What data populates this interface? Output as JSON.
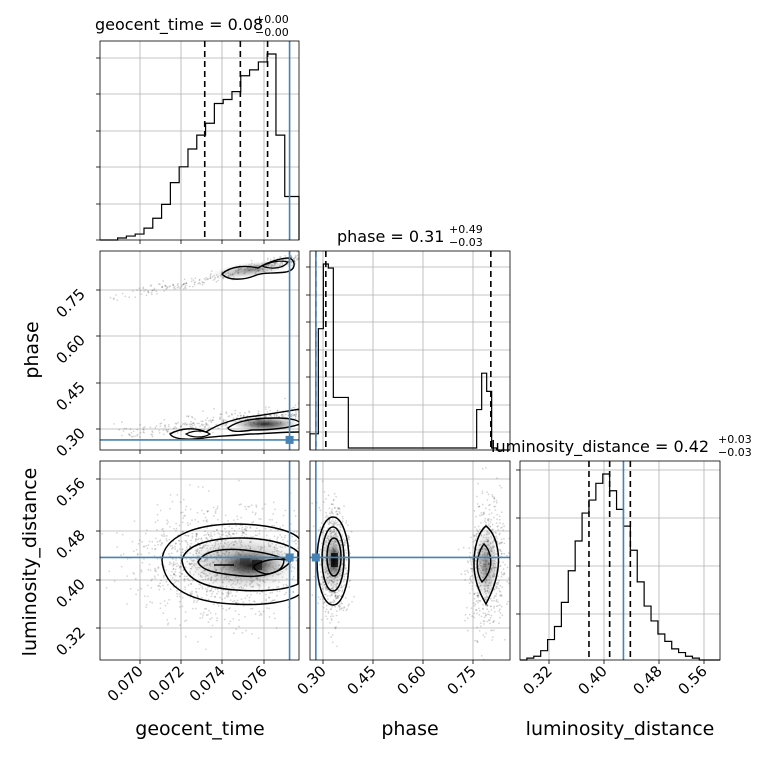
{
  "chart_data": {
    "type": "corner",
    "parameters": [
      "geocent_time",
      "phase",
      "luminosity_distance"
    ],
    "truth_color": "#4682b4",
    "panels": {
      "geocent_time_hist": {
        "title_label": "geocent_time",
        "title_median": "0.08",
        "title_plus": "+0.00",
        "title_minus": "−0.00",
        "xlim": [
          0.0683,
          0.0778
        ],
        "bin_edges": [
          0.0683,
          0.06872,
          0.06914,
          0.06956,
          0.06998,
          0.0704,
          0.07082,
          0.07124,
          0.07166,
          0.07208,
          0.0725,
          0.07292,
          0.07334,
          0.07376,
          0.07418,
          0.0746,
          0.07502,
          0.07544,
          0.07586,
          0.07628,
          0.0767,
          0.07712,
          0.07754,
          0.0778
        ],
        "counts": [
          0,
          0,
          1,
          2,
          3,
          6,
          11,
          18,
          29,
          37,
          46,
          53,
          59,
          69,
          71,
          75,
          83,
          86,
          90,
          94,
          53,
          22,
          22
        ],
        "quantiles": [
          0.0733,
          0.075,
          0.0763
        ],
        "truth": 0.07735
      },
      "phase_hist": {
        "title_label": "phase",
        "title_median": "0.31",
        "title_plus": "+0.49",
        "title_minus": "−0.03",
        "xlim": [
          0.26,
          0.86
        ],
        "bin_edges": [
          0.26,
          0.285,
          0.3,
          0.315,
          0.33,
          0.375,
          0.76,
          0.775,
          0.79,
          0.805,
          0.82,
          0.86
        ],
        "counts": [
          8,
          60,
          92,
          90,
          26,
          1,
          20,
          38,
          29,
          1,
          0
        ],
        "quantiles": [
          0.2775,
          0.3075,
          0.8025
        ],
        "truth": 0.2775
      },
      "luminosity_distance_hist": {
        "title_label": "luminosity_distance",
        "title_median": "0.42",
        "title_plus": "+0.03",
        "title_minus": "−0.03",
        "xlim": [
          0.29,
          0.58
        ],
        "bin_edges": [
          0.29,
          0.3,
          0.31,
          0.32,
          0.33,
          0.34,
          0.35,
          0.36,
          0.37,
          0.38,
          0.39,
          0.4,
          0.41,
          0.42,
          0.43,
          0.44,
          0.45,
          0.46,
          0.47,
          0.48,
          0.49,
          0.5,
          0.51,
          0.52,
          0.53,
          0.54,
          0.55,
          0.56,
          0.58
        ],
        "counts": [
          0,
          1,
          2,
          5,
          11,
          18,
          31,
          48,
          64,
          79,
          86,
          95,
          100,
          91,
          81,
          72,
          59,
          42,
          29,
          21,
          14,
          10,
          6,
          4,
          2,
          1,
          0,
          0
        ],
        "quantiles": [
          0.39,
          0.42,
          0.45
        ],
        "truth": 0.44
      },
      "phase_vs_geocent_time": {
        "xlim": [
          0.0683,
          0.0778
        ],
        "ylim": [
          0.245,
          0.885
        ],
        "yticks": [
          0.3,
          0.45,
          0.6,
          0.75
        ],
        "ytick_labels": [
          "0.30",
          "0.45",
          "0.60",
          "0.75"
        ],
        "truth_x": 0.07735,
        "truth_y": 0.2775
      },
      "distance_vs_geocent_time": {
        "xlim": [
          0.0683,
          0.0778
        ],
        "ylim": [
          0.27,
          0.6
        ],
        "xticks": [
          0.07,
          0.072,
          0.074,
          0.076
        ],
        "xtick_labels": [
          "0.070",
          "0.072",
          "0.074",
          "0.076"
        ],
        "yticks": [
          0.32,
          0.4,
          0.48,
          0.56
        ],
        "ytick_labels": [
          "0.32",
          "0.40",
          "0.48",
          "0.56"
        ],
        "truth_x": 0.07735,
        "truth_y": 0.44
      },
      "distance_vs_phase": {
        "xlim": [
          0.26,
          0.86
        ],
        "ylim": [
          0.27,
          0.6
        ],
        "xticks": [
          0.3,
          0.45,
          0.6,
          0.75
        ],
        "xtick_labels": [
          "0.30",
          "0.45",
          "0.60",
          "0.75"
        ],
        "truth_x": 0.2775,
        "truth_y": 0.44
      }
    },
    "distance_hist_xticks": [
      0.32,
      0.4,
      0.48,
      0.56
    ],
    "distance_hist_xtick_labels": [
      "0.32",
      "0.40",
      "0.48",
      "0.56"
    ],
    "axis_labels": {
      "x_geocent_time": "geocent_time",
      "x_phase": "phase",
      "x_luminosity_distance": "luminosity_distance",
      "y_phase": "phase",
      "y_luminosity_distance": "luminosity_distance"
    },
    "grid": true,
    "legend": "none"
  }
}
